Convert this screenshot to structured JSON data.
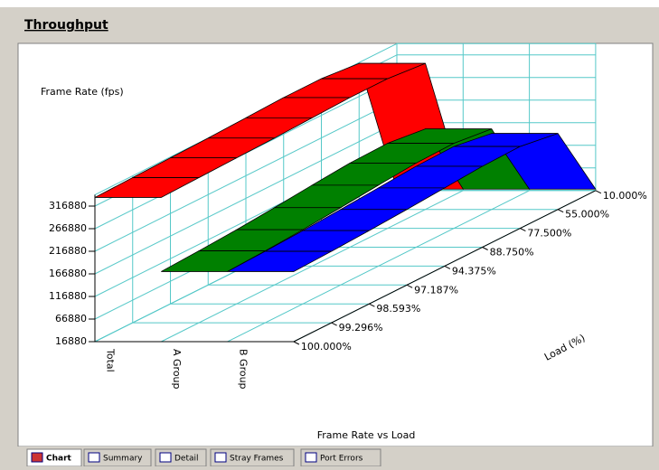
{
  "header": {
    "title": "Throughput"
  },
  "chart_data": {
    "type": "ribbon3d",
    "title": "Frame Rate vs Load",
    "y_label": "Frame Rate (fps)",
    "x_label": "Load (%)",
    "categories": [
      "10.000%",
      "55.000%",
      "77.500%",
      "88.750%",
      "94.375%",
      "97.187%",
      "98.593%",
      "99.296%",
      "100.000%"
    ],
    "series": [
      {
        "name": "Total",
        "color": "#ff0000",
        "values": [
          20000,
          340000,
          348000,
          348000,
          345000,
          342000,
          340000,
          338000,
          336000
        ]
      },
      {
        "name": "A Group",
        "color": "#008000",
        "values": [
          20000,
          195000,
          205000,
          203000,
          196000,
          188000,
          181000,
          176000,
          172000
        ]
      },
      {
        "name": "B Group",
        "color": "#0000ff",
        "values": [
          20000,
          185000,
          198000,
          196000,
          190000,
          184000,
          179000,
          175000,
          172000
        ]
      }
    ],
    "ylim": [
      16880,
      341880
    ],
    "yticks": [
      16880,
      66880,
      116880,
      166880,
      216880,
      266880,
      316880
    ],
    "grid": true
  },
  "tabs": [
    "Chart",
    "Summary",
    "Detail",
    "Stray Frames",
    "Port Errors"
  ]
}
